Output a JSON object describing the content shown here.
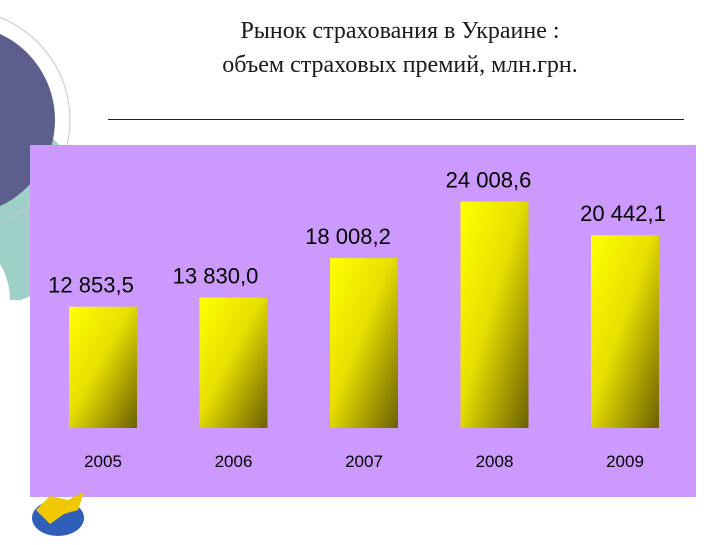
{
  "slide": {
    "title_line1": "Рынок страхования в Украине :",
    "title_line2": "объем страховых премий, млн.грн."
  },
  "colors": {
    "panel_background": "#cc99ff",
    "bar_light": "#ffff00",
    "bar_dark": "#6b6000",
    "decor_circle_dark": "#5c5e8c",
    "decor_circle_teal": "#9ed0c8"
  },
  "chart_data": {
    "type": "bar",
    "categories": [
      "2005",
      "2006",
      "2007",
      "2008",
      "2009"
    ],
    "values": [
      12853.5,
      13830.0,
      18008.2,
      24008.6,
      20442.1
    ],
    "value_labels": [
      "12 853,5",
      "13 830,0",
      "18 008,2",
      "24 008,6",
      "20 442,1"
    ],
    "title": "",
    "xlabel": "",
    "ylabel": "",
    "ylim": [
      0,
      30000
    ],
    "grid": false,
    "legend": "none"
  }
}
